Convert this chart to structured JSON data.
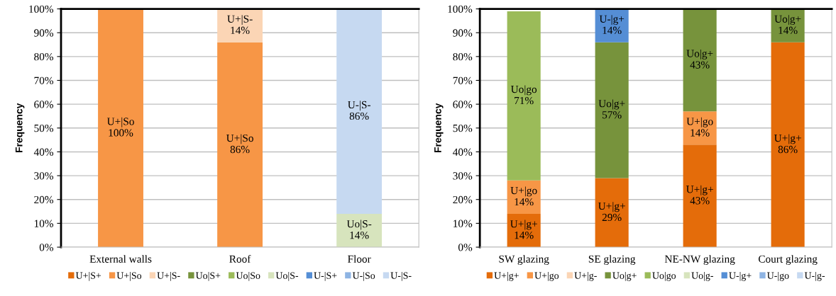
{
  "chart_data": [
    {
      "type": "bar",
      "stacked": true,
      "ylabel": "Frequency",
      "categories": [
        "External walls",
        "Roof",
        "Floor"
      ],
      "ylim": [
        0,
        100
      ],
      "yticks": [
        {
          "value": 0,
          "label": "0%"
        },
        {
          "value": 10,
          "label": "10%"
        },
        {
          "value": 20,
          "label": "20%"
        },
        {
          "value": 30,
          "label": "30%"
        },
        {
          "value": 40,
          "label": "40%"
        },
        {
          "value": 50,
          "label": "50%"
        },
        {
          "value": 60,
          "label": "60%"
        },
        {
          "value": 70,
          "label": "70%"
        },
        {
          "value": 80,
          "label": "80%"
        },
        {
          "value": 90,
          "label": "90%"
        },
        {
          "value": 100,
          "label": "100%"
        }
      ],
      "grid": "y",
      "legend": "bottom",
      "series": [
        {
          "name": "U+|S+",
          "color": "#e46c0a",
          "values": [
            null,
            null,
            null
          ]
        },
        {
          "name": "U+|So",
          "color": "#f79646",
          "values": [
            100,
            86,
            null
          ],
          "value_labels": [
            "U+|So\n100%",
            "U+|So\n86%",
            null
          ]
        },
        {
          "name": "U+|S-",
          "color": "#fbd5b5",
          "values": [
            null,
            14,
            null
          ],
          "value_labels": [
            null,
            "U+|S-\n14%",
            null
          ]
        },
        {
          "name": "Uo|S+",
          "color": "#77933c",
          "values": [
            null,
            null,
            null
          ]
        },
        {
          "name": "Uo|So",
          "color": "#9bbb59",
          "values": [
            null,
            null,
            null
          ]
        },
        {
          "name": "Uo|S-",
          "color": "#d7e4bd",
          "values": [
            null,
            null,
            14
          ],
          "value_labels": [
            null,
            null,
            "Uo|S-\n14%"
          ]
        },
        {
          "name": "U-|S+",
          "color": "#558ed5",
          "values": [
            null,
            null,
            null
          ]
        },
        {
          "name": "U-|So",
          "color": "#8eb4e3",
          "values": [
            null,
            null,
            null
          ]
        },
        {
          "name": "U-|S-",
          "color": "#c6d9f1",
          "values": [
            null,
            null,
            86
          ],
          "value_labels": [
            null,
            null,
            "U-|S-\n86%"
          ]
        }
      ]
    },
    {
      "type": "bar",
      "stacked": true,
      "ylabel": "Frequency",
      "categories": [
        "SW glazing",
        "SE glazing",
        "NE-NW glazing",
        "Court glazing"
      ],
      "ylim": [
        0,
        100
      ],
      "yticks": [
        {
          "value": 0,
          "label": "0%"
        },
        {
          "value": 10,
          "label": "10%"
        },
        {
          "value": 20,
          "label": "20%"
        },
        {
          "value": 30,
          "label": "30%"
        },
        {
          "value": 40,
          "label": "40%"
        },
        {
          "value": 50,
          "label": "50%"
        },
        {
          "value": 60,
          "label": "60%"
        },
        {
          "value": 70,
          "label": "70%"
        },
        {
          "value": 80,
          "label": "80%"
        },
        {
          "value": 90,
          "label": "90%"
        },
        {
          "value": 100,
          "label": "100%"
        }
      ],
      "grid": "y",
      "legend": "bottom",
      "series": [
        {
          "name": "U+|g+",
          "color": "#e46c0a",
          "values": [
            14,
            29,
            43,
            86
          ],
          "value_labels": [
            "U+|g+\n14%",
            "U+|g+\n29%",
            "U+|g+\n43%",
            "U+|g+\n86%"
          ]
        },
        {
          "name": "U+|go",
          "color": "#f79646",
          "values": [
            14,
            null,
            14,
            null
          ],
          "value_labels": [
            "U+|go\n14%",
            null,
            "U+|go\n14%",
            null
          ]
        },
        {
          "name": "U+|g-",
          "color": "#fbd5b5",
          "values": [
            null,
            null,
            null,
            null
          ]
        },
        {
          "name": "Uo|g+",
          "color": "#77933c",
          "values": [
            null,
            57,
            43,
            14
          ],
          "value_labels": [
            null,
            "Uo|g+\n57%",
            "Uo|g+\n43%",
            "Uo|g+\n14%"
          ]
        },
        {
          "name": "Uo|go",
          "color": "#9bbb59",
          "values": [
            71,
            null,
            null,
            null
          ],
          "value_labels": [
            "Uo|go\n71%",
            null,
            null,
            null
          ]
        },
        {
          "name": "Uo|g-",
          "color": "#d7e4bd",
          "values": [
            null,
            null,
            null,
            null
          ]
        },
        {
          "name": "U-|g+",
          "color": "#558ed5",
          "values": [
            null,
            14,
            null,
            null
          ],
          "value_labels": [
            null,
            "U-|g+\n14%",
            null,
            null
          ]
        },
        {
          "name": "U-|go",
          "color": "#8eb4e3",
          "values": [
            null,
            null,
            null,
            null
          ]
        },
        {
          "name": "U-|g-",
          "color": "#c6d9f1",
          "values": [
            null,
            null,
            null,
            null
          ]
        }
      ]
    }
  ]
}
